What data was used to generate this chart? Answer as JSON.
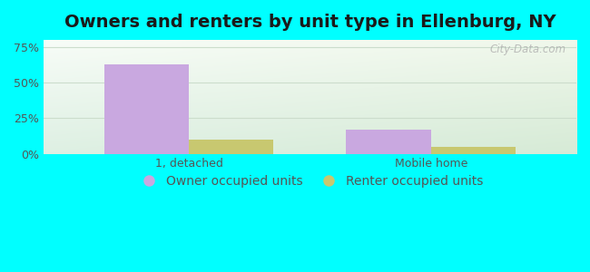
{
  "title": "Owners and renters by unit type in Ellenburg, NY",
  "categories": [
    "1, detached",
    "Mobile home"
  ],
  "owner_values": [
    63,
    17
  ],
  "renter_values": [
    10,
    5
  ],
  "owner_color": "#c9a8e0",
  "renter_color": "#c8c870",
  "yticks": [
    0,
    25,
    50,
    75
  ],
  "ytick_labels": [
    "0%",
    "25%",
    "50%",
    "75%"
  ],
  "ylim": [
    0,
    80
  ],
  "bar_width": 0.35,
  "bg_outer": "#00ffff",
  "legend_labels": [
    "Owner occupied units",
    "Renter occupied units"
  ],
  "watermark": "City-Data.com",
  "title_fontsize": 14,
  "tick_fontsize": 9,
  "legend_fontsize": 10,
  "axis_label_color": "#555555",
  "grid_color": "#ccddcc"
}
